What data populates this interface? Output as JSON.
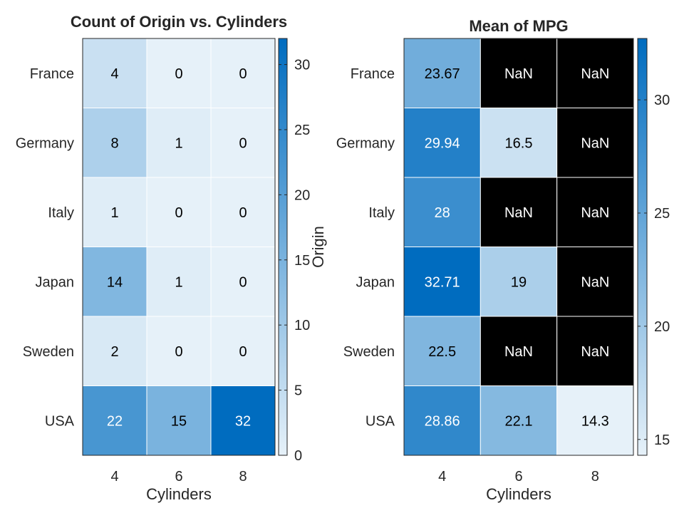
{
  "chart_data": [
    {
      "type": "heatmap",
      "title": "Count of Origin vs. Cylinders",
      "xlabel": "Cylinders",
      "ylabel": "Origin",
      "x": [
        "4",
        "6",
        "8"
      ],
      "y": [
        "France",
        "Germany",
        "Italy",
        "Japan",
        "Sweden",
        "USA"
      ],
      "values": [
        [
          4,
          0,
          0
        ],
        [
          8,
          1,
          0
        ],
        [
          1,
          0,
          0
        ],
        [
          14,
          1,
          0
        ],
        [
          2,
          0,
          0
        ],
        [
          22,
          15,
          32
        ]
      ],
      "cell_labels": [
        [
          "4",
          "0",
          "0"
        ],
        [
          "8",
          "1",
          "0"
        ],
        [
          "1",
          "0",
          "0"
        ],
        [
          "14",
          "1",
          "0"
        ],
        [
          "2",
          "0",
          "0"
        ],
        [
          "22",
          "15",
          "32"
        ]
      ],
      "color_range": [
        0,
        32
      ],
      "colorbar_ticks": [
        0,
        5,
        10,
        15,
        20,
        25,
        30
      ],
      "colorbar_tick_labels": [
        "0",
        "5",
        "10",
        "15",
        "20",
        "25",
        "30"
      ],
      "colormap": [
        "#e6f1f9",
        "#006cbf"
      ],
      "missing_color": "#000000"
    },
    {
      "type": "heatmap",
      "title": "Mean of MPG",
      "xlabel": "Cylinders",
      "ylabel": "Origin",
      "x": [
        "4",
        "6",
        "8"
      ],
      "y": [
        "France",
        "Germany",
        "Italy",
        "Japan",
        "Sweden",
        "USA"
      ],
      "values": [
        [
          23.67,
          null,
          null
        ],
        [
          29.94,
          16.5,
          null
        ],
        [
          28,
          null,
          null
        ],
        [
          32.71,
          19,
          null
        ],
        [
          22.5,
          null,
          null
        ],
        [
          28.86,
          22.1,
          14.3
        ]
      ],
      "cell_labels": [
        [
          "23.67",
          "NaN",
          "NaN"
        ],
        [
          "29.94",
          "16.5",
          "NaN"
        ],
        [
          "28",
          "NaN",
          "NaN"
        ],
        [
          "32.71",
          "19",
          "NaN"
        ],
        [
          "22.5",
          "NaN",
          "NaN"
        ],
        [
          "28.86",
          "22.1",
          "14.3"
        ]
      ],
      "color_range": [
        14.3,
        32.71
      ],
      "colorbar_ticks": [
        15,
        20,
        25,
        30
      ],
      "colorbar_tick_labels": [
        "15",
        "20",
        "25",
        "30"
      ],
      "colormap": [
        "#e6f1f9",
        "#006cbf"
      ],
      "missing_color": "#000000"
    }
  ]
}
